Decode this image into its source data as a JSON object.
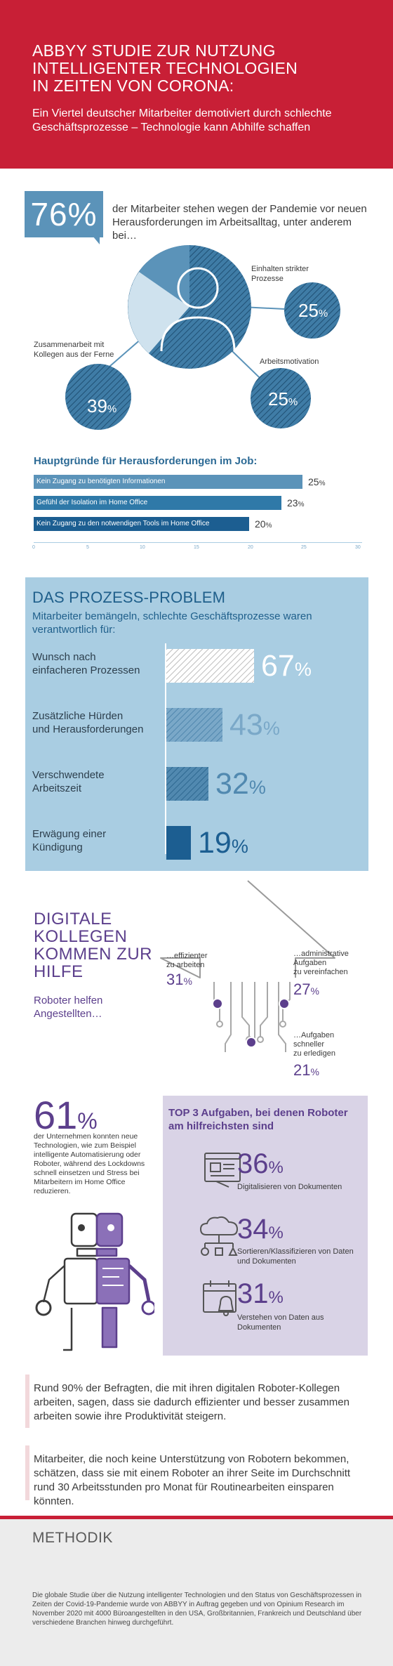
{
  "header": {
    "title_lines": [
      "ABBYY STUDIE ZUR NUTZUNG",
      "INTELLIGENTER TECHNOLOGIEN",
      "IN ZEITEN VON CORONA:"
    ],
    "subtitle": "Ein Viertel deutscher Mitarbeiter demotiviert durch schlechte Geschäftsprozesse – Technologie kann Abhilfe schaffen"
  },
  "challenges": {
    "headline_value": "76%",
    "intro": "der Mitarbeiter stehen wegen der Pandemie vor neuen Herausforderungen im Arbeitsalltag, unter anderem bei…",
    "items": [
      {
        "label": "Einhalten strikter Prozesse",
        "value_num": "25",
        "unit": "%"
      },
      {
        "label": "Zusammenarbeit mit Kollegen aus der Ferne",
        "value_num": "39",
        "unit": "%"
      },
      {
        "label": "Arbeitsmotivation",
        "value_num": "25",
        "unit": "%"
      }
    ]
  },
  "reasons": {
    "title": "Hauptgründe für Herausforderungen im Job:",
    "ticks": [
      "0",
      "5",
      "10",
      "15",
      "20",
      "25",
      "30"
    ],
    "max": 30,
    "bars": [
      {
        "label": "Kein Zugang zu benötigten Informationen",
        "value": 25,
        "value_num": "25",
        "unit": "%",
        "color": "#5b93b9"
      },
      {
        "label": "Gefühl der Isolation im Home Office",
        "value": 23,
        "value_num": "23",
        "unit": "%",
        "color": "#2f79a8"
      },
      {
        "label": "Kein Zugang zu den notwendigen Tools im Home Office",
        "value": 20,
        "value_num": "20",
        "unit": "%",
        "color": "#1c5e91"
      }
    ]
  },
  "process": {
    "title": "DAS PROZESS-PROBLEM",
    "subtitle": "Mitarbeiter bemängeln, schlechte Geschäftsprozesse waren verantwortlich für:",
    "rows": [
      {
        "label_lines": [
          "Wunsch nach",
          "einfacheren Prozessen"
        ],
        "value": 67,
        "value_num": "67",
        "unit": "%",
        "color": "#ffffff"
      },
      {
        "label_lines": [
          "Zusätzliche Hürden",
          "und Herausforderungen"
        ],
        "value": 43,
        "value_num": "43",
        "unit": "%",
        "color": "#7aa8c8"
      },
      {
        "label_lines": [
          "Verschwendete",
          "Arbeitszeit"
        ],
        "value": 32,
        "value_num": "32",
        "unit": "%",
        "color": "#5189b0"
      },
      {
        "label_lines": [
          "Erwägung einer",
          "Kündigung"
        ],
        "value": 19,
        "value_num": "19",
        "unit": "%",
        "color": "#1c5e91"
      }
    ]
  },
  "digital": {
    "title_lines": [
      "DIGITALE",
      "KOLLEGEN",
      "KOMMEN ZUR",
      "HILFE"
    ],
    "subtitle": "Roboter helfen Angestellten…",
    "points": [
      {
        "text_lines": [
          "…effizienter",
          "zu arbeiten"
        ],
        "value_num": "31",
        "unit": "%"
      },
      {
        "text_lines": [
          "…administrative",
          "Aufgaben",
          "zu vereinfachen"
        ],
        "value_num": "27",
        "unit": "%"
      },
      {
        "text_lines": [
          "…Aufgaben",
          "schneller",
          "zu erledigen"
        ],
        "value_num": "21",
        "unit": "%"
      }
    ]
  },
  "companies": {
    "value_num": "61",
    "unit": "%",
    "text": "der Unternehmen konnten neue Technologien, wie zum Beispiel intelligente Automatisierung oder Roboter, während des Lockdowns schnell einsetzen und Stress bei Mitarbeitern im Home Office reduzieren."
  },
  "top3": {
    "title": "TOP 3 Aufgaben, bei denen Roboter am hilfreichsten sind",
    "items": [
      {
        "icon": "document-screen-icon",
        "value_num": "36",
        "unit": "%",
        "text": "Digitalisieren von Dokumenten"
      },
      {
        "icon": "cloud-sorting-icon",
        "value_num": "34",
        "unit": "%",
        "text": "Sortieren/Klassifizieren von Daten und Dokumenten"
      },
      {
        "icon": "calendar-bell-icon",
        "value_num": "31",
        "unit": "%",
        "text": "Verstehen von Daten aus Dokumenten"
      }
    ]
  },
  "quotes": [
    "Rund 90% der Befragten, die mit ihren digitalen Roboter-Kollegen arbeiten, sagen, dass sie dadurch effizienter und besser zusammen arbeiten sowie ihre Produktivität steigern.",
    "Mitarbeiter, die noch keine Unterstützung von Robotern bekommen, schätzen, dass sie mit einem Roboter an ihrer Seite im Durchschnitt rund 30 Arbeitsstunden pro Monat für Routinearbeiten einsparen könnten."
  ],
  "methodik": {
    "title": "METHODIK",
    "text": "Die globale Studie über die Nutzung intelligenter Technologien und den Status von Geschäftsprozessen in Zeiten der Covid-19-Pandemie wurde von ABBYY in Auftrag gegeben und von Opinium Research im November 2020 mit 4000 Büroangestellten in den USA, Großbritannien, Frankreich und Deutschland über verschiedene Branchen hinweg durchgeführt."
  },
  "colors": {
    "brand_red": "#c81f36",
    "blue": "#2f79a8",
    "light_blue": "#a9cde2",
    "purple": "#5c3f8c",
    "lavender": "#d9d3e6"
  }
}
